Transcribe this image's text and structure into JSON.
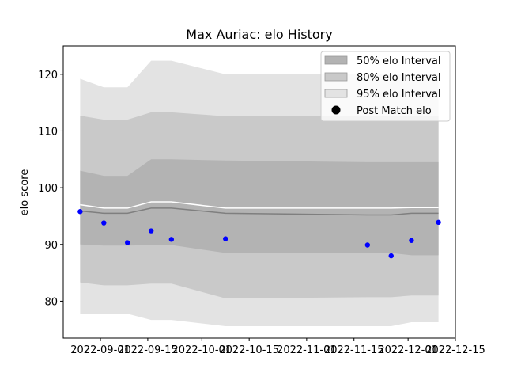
{
  "chart_data": {
    "type": "area",
    "title": "Max Auriac: elo History",
    "xlabel": "",
    "ylabel": "elo score",
    "x_ticks": [
      "2022-09-01",
      "2022-09-15",
      "2022-10-01",
      "2022-10-15",
      "2022-11-01",
      "2022-11-15",
      "2022-12-01",
      "2022-12-15"
    ],
    "y_ticks": [
      80,
      90,
      100,
      110,
      120
    ],
    "xlim": [
      "2022-08-21",
      "2022-12-15"
    ],
    "ylim": [
      73.5,
      125
    ],
    "legend_position": "top-right",
    "grid": false,
    "colors": {
      "band95": "#e3e3e3",
      "band80": "#c9c9c9",
      "band50": "#b3b3b3",
      "mean": "#7f7f7f",
      "upper": "#ffffff",
      "points": "#0000ff"
    },
    "legend": [
      {
        "label": "50% elo Interval",
        "kind": "band50"
      },
      {
        "label": "80% elo Interval",
        "kind": "band80"
      },
      {
        "label": "95% elo Interval",
        "kind": "band95"
      },
      {
        "label": "Post Match elo",
        "kind": "point"
      }
    ],
    "bands": {
      "dates": [
        "2022-08-26",
        "2022-09-02",
        "2022-09-09",
        "2022-09-16",
        "2022-09-22",
        "2022-10-08",
        "2022-11-19",
        "2022-11-26",
        "2022-12-02",
        "2022-12-10"
      ],
      "mean": [
        95.9,
        95.5,
        95.5,
        96.4,
        96.4,
        95.5,
        95.2,
        95.2,
        95.5,
        95.5
      ],
      "upper_line": [
        97.0,
        96.4,
        96.4,
        97.5,
        97.5,
        96.4,
        96.4,
        96.4,
        96.5,
        96.5
      ],
      "band50": {
        "low": [
          90.0,
          89.8,
          89.8,
          89.9,
          89.9,
          88.5,
          88.5,
          88.5,
          88.1,
          88.1
        ],
        "high": [
          103.0,
          102.1,
          102.1,
          105.0,
          105.0,
          104.8,
          104.5,
          104.5,
          104.5,
          104.5
        ]
      },
      "band80": {
        "low": [
          83.3,
          82.8,
          82.8,
          83.1,
          83.1,
          80.5,
          80.7,
          80.7,
          81.0,
          81.0
        ],
        "high": [
          112.7,
          112.0,
          112.0,
          113.3,
          113.3,
          112.6,
          112.6,
          112.6,
          112.6,
          112.6
        ]
      },
      "band95": {
        "low": [
          77.8,
          77.8,
          77.8,
          76.7,
          76.7,
          75.6,
          75.6,
          75.6,
          76.3,
          76.3
        ],
        "high": [
          119.2,
          117.7,
          117.7,
          122.4,
          122.4,
          120.0,
          120.0,
          120.0,
          120.0,
          120.0
        ]
      }
    },
    "points": {
      "dates": [
        "2022-08-26",
        "2022-09-02",
        "2022-09-09",
        "2022-09-16",
        "2022-09-22",
        "2022-10-08",
        "2022-11-19",
        "2022-11-26",
        "2022-12-02",
        "2022-12-10"
      ],
      "values": [
        95.8,
        93.8,
        90.3,
        92.4,
        90.9,
        91.0,
        89.9,
        88.0,
        90.7,
        93.9
      ]
    }
  }
}
